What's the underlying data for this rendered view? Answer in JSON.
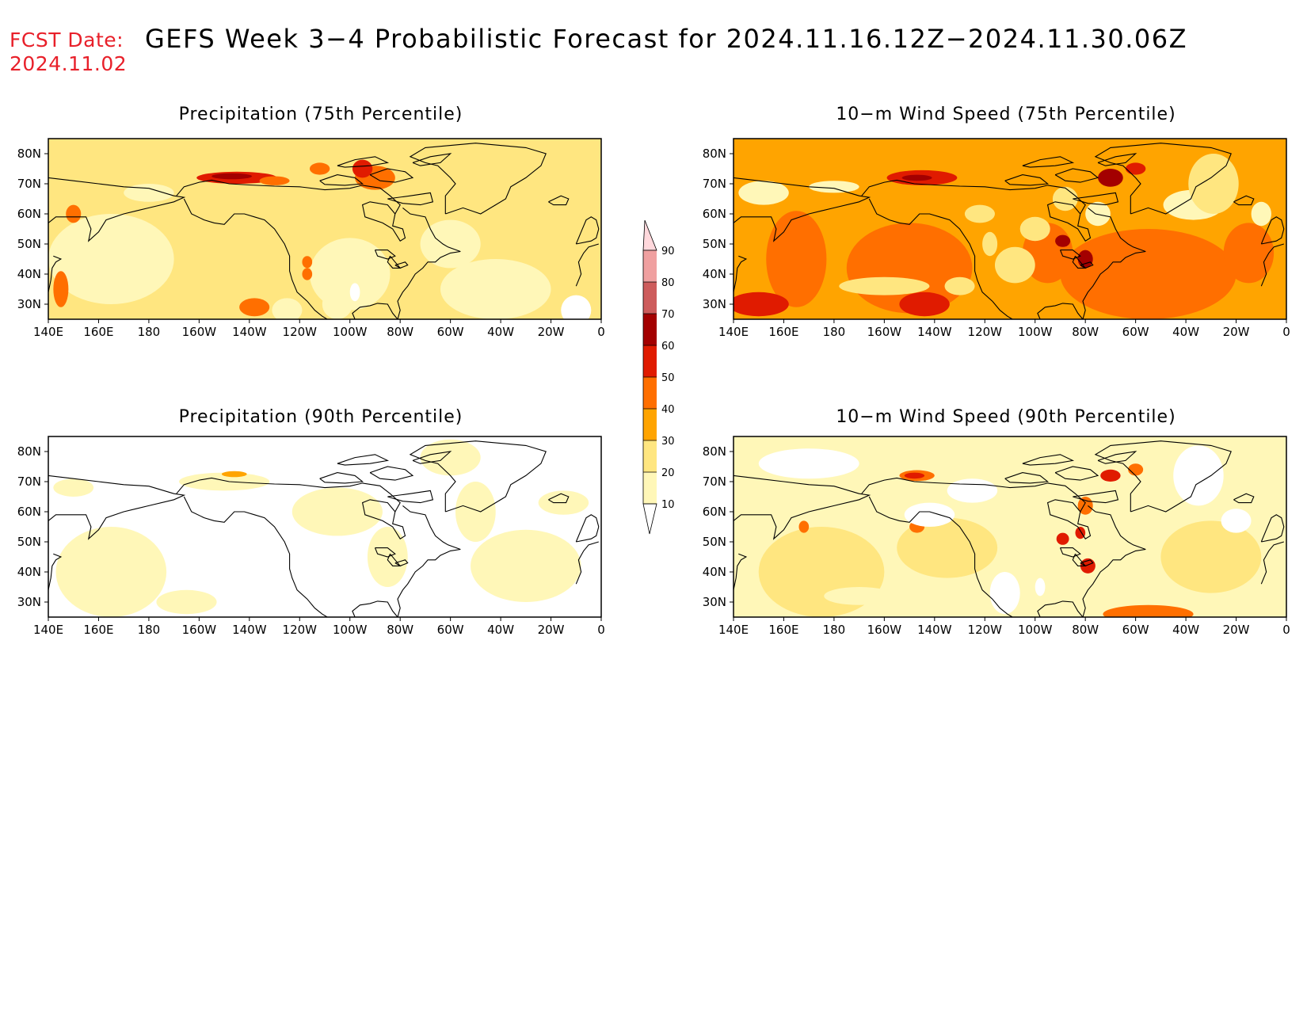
{
  "header": {
    "fcst_label": "FCST Date:",
    "fcst_date": "2024.11.02",
    "title": "GEFS Week 3−4 Probabilistic Forecast for 2024.11.16.12Z−2024.11.30.06Z",
    "label_color": "#e8202a"
  },
  "panels": [
    {
      "title": "Precipitation (75th Percentile)",
      "field": "precip75"
    },
    {
      "title": "10−m Wind Speed (75th Percentile)",
      "field": "wind75"
    },
    {
      "title": "Precipitation (90th Percentile)",
      "field": "precip90"
    },
    {
      "title": "10−m Wind Speed (90th Percentile)",
      "field": "wind90"
    }
  ],
  "axes": {
    "lon_labels": [
      "140E",
      "160E",
      "180",
      "160W",
      "140W",
      "120W",
      "100W",
      "80W",
      "60W",
      "40W",
      "20W",
      "0"
    ],
    "lat_labels": [
      "80N",
      "70N",
      "60N",
      "50N",
      "40N",
      "30N"
    ],
    "lon_range_deg_east": [
      140,
      360
    ],
    "lat_range": [
      25,
      85
    ]
  },
  "colorbar": {
    "levels": [
      "10",
      "20",
      "30",
      "40",
      "50",
      "60",
      "70",
      "80",
      "90"
    ],
    "colors": [
      "#fff7b8",
      "#ffe680",
      "#ffa400",
      "#ff6f00",
      "#e01b00",
      "#a30000",
      "#cd5c5c",
      "#f0a0a0",
      "#ffd8dc"
    ]
  }
}
